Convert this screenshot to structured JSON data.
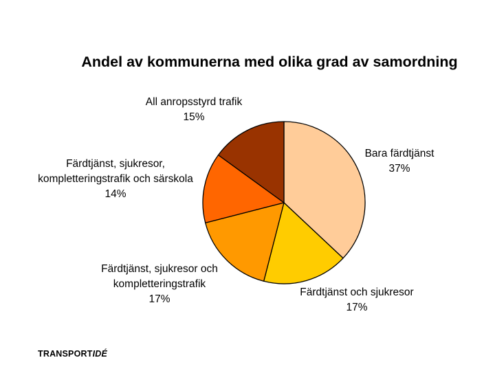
{
  "chart_data": {
    "type": "pie",
    "title": "Andel av kommunerna med olika grad av samordning",
    "slices": [
      {
        "label_lines": [
          "Bara färdtjänst"
        ],
        "pct_label": "37%",
        "value": 37,
        "color": "#FFCC99"
      },
      {
        "label_lines": [
          "Färdtjänst och sjukresor"
        ],
        "pct_label": "17%",
        "value": 17,
        "color": "#FFCC00"
      },
      {
        "label_lines": [
          "Färdtjänst, sjukresor och",
          "kompletteringstrafik"
        ],
        "pct_label": "17%",
        "value": 17,
        "color": "#FF9900"
      },
      {
        "label_lines": [
          "Färdtjänst, sjukresor,",
          "kompletteringstrafik och särskola"
        ],
        "pct_label": "14%",
        "value": 14,
        "color": "#FF6600"
      },
      {
        "label_lines": [
          "All anropsstyrd trafik"
        ],
        "pct_label": "15%",
        "value": 15,
        "color": "#993300"
      }
    ],
    "legend": "none"
  },
  "footer": {
    "logo_main": "TRANSPORT",
    "logo_italic": "IDÉ"
  }
}
